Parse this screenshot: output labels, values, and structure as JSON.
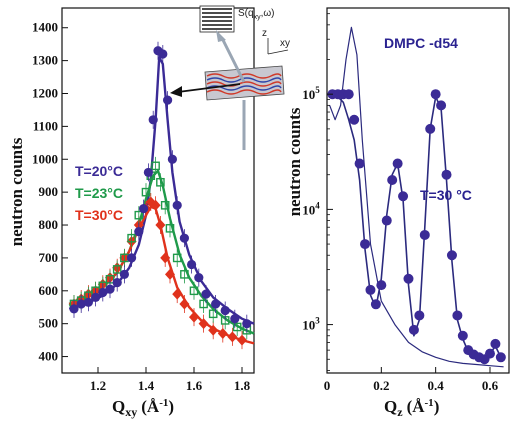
{
  "colors": {
    "purple": "#3b2b96",
    "green": "#1f9a4a",
    "red": "#e0321c",
    "theory": "#2b2a7e"
  },
  "chart_data": [
    {
      "type": "scatter",
      "xlabel": "Q",
      "xlabel_sub": "xy",
      "xlabel_unit": "(Å",
      "xlabel_unit_sup": "-1",
      "xlabel_close": ")",
      "ylabel": "neutron counts",
      "xlim": [
        1.05,
        1.85
      ],
      "ylim": [
        350,
        1460
      ],
      "xticks": [
        "1.2",
        "1.4",
        "1.6",
        "1.8"
      ],
      "xtick_values": [
        1.2,
        1.4,
        1.6,
        1.8
      ],
      "yticks": [
        "400",
        "500",
        "600",
        "700",
        "800",
        "900",
        "1000",
        "1100",
        "1200",
        "1300",
        "1400"
      ],
      "ytick_values": [
        400,
        500,
        600,
        700,
        800,
        900,
        1000,
        1100,
        1200,
        1300,
        1400
      ],
      "legend_position": "left",
      "series": [
        {
          "name": "T=20°C",
          "color": "#3b2b96",
          "marker": "circle",
          "x": [
            1.1,
            1.13,
            1.16,
            1.19,
            1.22,
            1.25,
            1.28,
            1.31,
            1.34,
            1.37,
            1.39,
            1.41,
            1.43,
            1.45,
            1.47,
            1.49,
            1.51,
            1.53,
            1.56,
            1.59,
            1.62,
            1.65,
            1.69,
            1.73,
            1.77,
            1.82
          ],
          "y": [
            545,
            560,
            565,
            580,
            595,
            605,
            625,
            650,
            700,
            780,
            850,
            960,
            1120,
            1330,
            1320,
            1180,
            1000,
            860,
            760,
            680,
            640,
            590,
            560,
            540,
            515,
            500
          ]
        },
        {
          "name": "T=23°C",
          "color": "#1f9a4a",
          "marker": "square",
          "x": [
            1.1,
            1.13,
            1.16,
            1.19,
            1.22,
            1.25,
            1.28,
            1.31,
            1.34,
            1.37,
            1.4,
            1.42,
            1.44,
            1.46,
            1.48,
            1.5,
            1.53,
            1.56,
            1.6,
            1.64,
            1.68,
            1.73,
            1.78,
            1.82
          ],
          "y": [
            560,
            570,
            585,
            600,
            615,
            635,
            665,
            700,
            760,
            830,
            900,
            950,
            980,
            930,
            860,
            790,
            700,
            650,
            600,
            560,
            530,
            510,
            490,
            480
          ]
        },
        {
          "name": "T=30°C",
          "color": "#e0321c",
          "marker": "diamond",
          "x": [
            1.1,
            1.13,
            1.16,
            1.19,
            1.22,
            1.25,
            1.28,
            1.31,
            1.34,
            1.37,
            1.4,
            1.42,
            1.44,
            1.46,
            1.48,
            1.5,
            1.53,
            1.56,
            1.6,
            1.64,
            1.68,
            1.72,
            1.76,
            1.8
          ],
          "y": [
            560,
            575,
            590,
            600,
            620,
            640,
            670,
            700,
            750,
            800,
            850,
            870,
            860,
            800,
            700,
            650,
            590,
            560,
            520,
            500,
            480,
            470,
            460,
            450
          ]
        }
      ],
      "fits": [
        {
          "color": "#3b2b96",
          "x": [
            1.08,
            1.15,
            1.22,
            1.28,
            1.33,
            1.37,
            1.4,
            1.42,
            1.44,
            1.455,
            1.47,
            1.49,
            1.51,
            1.54,
            1.58,
            1.63,
            1.68,
            1.74,
            1.8,
            1.85
          ],
          "y": [
            545,
            560,
            585,
            620,
            670,
            740,
            830,
            940,
            1120,
            1310,
            1290,
            1120,
            960,
            810,
            710,
            630,
            580,
            545,
            515,
            500
          ]
        },
        {
          "color": "#1f9a4a",
          "x": [
            1.08,
            1.15,
            1.22,
            1.28,
            1.33,
            1.37,
            1.4,
            1.43,
            1.45,
            1.47,
            1.5,
            1.54,
            1.58,
            1.63,
            1.68,
            1.74,
            1.8,
            1.85
          ],
          "y": [
            555,
            580,
            610,
            655,
            720,
            800,
            880,
            950,
            965,
            920,
            820,
            710,
            640,
            585,
            545,
            510,
            485,
            470
          ]
        },
        {
          "color": "#e0321c",
          "x": [
            1.08,
            1.15,
            1.22,
            1.28,
            1.33,
            1.37,
            1.4,
            1.42,
            1.44,
            1.46,
            1.49,
            1.53,
            1.58,
            1.63,
            1.68,
            1.74,
            1.8,
            1.85
          ],
          "y": [
            560,
            585,
            615,
            655,
            720,
            790,
            830,
            855,
            850,
            800,
            700,
            610,
            550,
            510,
            485,
            465,
            450,
            440
          ]
        }
      ]
    },
    {
      "type": "scatter",
      "title": "DMPC -d54",
      "annotation": "T=30 °C",
      "xlabel": "Q",
      "xlabel_sub": "z",
      "xlabel_unit": "(Å",
      "xlabel_unit_sup": "-1",
      "xlabel_close": ")",
      "ylabel": "neutron counts",
      "y_scale": "log",
      "xlim": [
        0,
        0.67
      ],
      "ylim": [
        380,
        560000
      ],
      "xticks": [
        "0",
        "0.2",
        "0.4",
        "0.6"
      ],
      "xtick_values": [
        0,
        0.2,
        0.4,
        0.6
      ],
      "yticks": [
        {
          "base": "10",
          "exp": "3",
          "value": 1000
        },
        {
          "base": "10",
          "exp": "4",
          "value": 10000
        },
        {
          "base": "10",
          "exp": "5",
          "value": 100000
        }
      ],
      "series": [
        {
          "name": "",
          "color": "#3b2b96",
          "marker": "circle",
          "x": [
            0.02,
            0.04,
            0.06,
            0.08,
            0.1,
            0.12,
            0.14,
            0.16,
            0.18,
            0.2,
            0.22,
            0.24,
            0.26,
            0.28,
            0.3,
            0.32,
            0.34,
            0.36,
            0.38,
            0.4,
            0.42,
            0.44,
            0.46,
            0.48,
            0.5,
            0.52,
            0.54,
            0.56,
            0.58,
            0.6,
            0.62,
            0.64
          ],
          "y": [
            100000,
            100000,
            100000,
            100000,
            60000,
            25000,
            5000,
            2000,
            1500,
            2200,
            8000,
            18000,
            25000,
            13000,
            2500,
            900,
            1200,
            6000,
            50000,
            100000,
            80000,
            20000,
            4000,
            1200,
            800,
            600,
            550,
            520,
            500,
            560,
            680,
            520
          ]
        }
      ],
      "fits": [
        {
          "color": "#2b2a7e",
          "x": [
            0.02,
            0.04,
            0.06,
            0.08,
            0.1,
            0.12,
            0.14,
            0.16,
            0.18,
            0.2,
            0.22,
            0.24,
            0.26,
            0.28,
            0.3,
            0.32,
            0.34,
            0.36,
            0.38,
            0.4,
            0.42,
            0.44,
            0.46,
            0.48,
            0.5,
            0.52,
            0.54,
            0.56,
            0.58,
            0.6,
            0.62,
            0.64
          ],
          "y": [
            100000,
            95000,
            85000,
            60000,
            40000,
            18000,
            4500,
            1800,
            1400,
            2500,
            9000,
            20000,
            25000,
            12000,
            2200,
            800,
            1100,
            7000,
            50000,
            95000,
            75000,
            18000,
            3500,
            1100,
            750,
            580,
            540,
            510,
            500,
            560,
            650,
            520
          ]
        },
        {
          "color": "#2b2a7e",
          "x": [
            0.01,
            0.03,
            0.05,
            0.07,
            0.09,
            0.11,
            0.13,
            0.16,
            0.2,
            0.25,
            0.3,
            0.35,
            0.4,
            0.45,
            0.5,
            0.55,
            0.6,
            0.65
          ],
          "y": [
            80000,
            60000,
            80000,
            200000,
            380000,
            220000,
            40000,
            5000,
            1600,
            1000,
            700,
            580,
            520,
            480,
            460,
            450,
            440,
            430
          ]
        }
      ]
    }
  ],
  "inset": {
    "label_s": "S(q",
    "label_s_sub": "xy",
    "label_s_tail": ",ω)",
    "axis_z": "z",
    "axis_xy": "xy"
  }
}
